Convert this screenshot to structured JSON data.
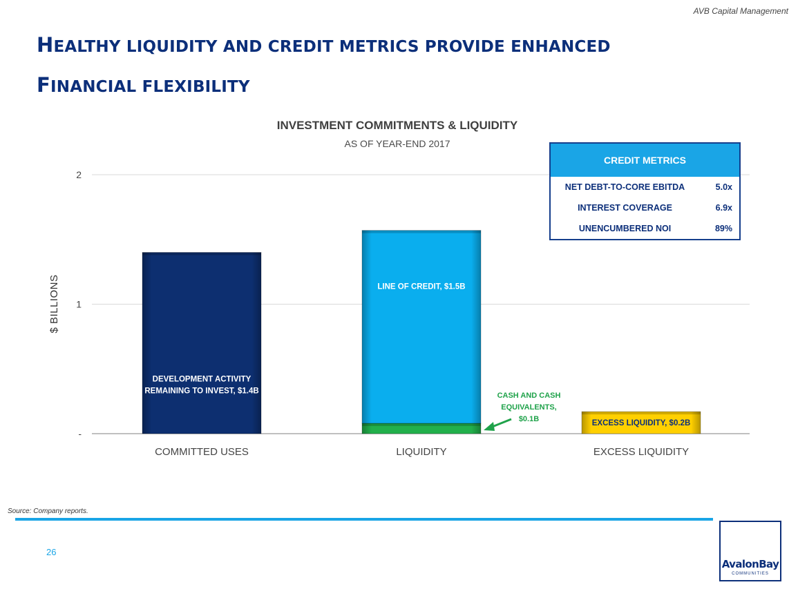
{
  "header": {
    "firm": "AVB Capital Management",
    "title_line1": "Healthy liquidity and credit metrics provide enhanced",
    "title_line2": "financial flexibility"
  },
  "chart_data": {
    "type": "bar",
    "stacked": true,
    "title": "INVESTMENT COMMITMENTS & LIQUIDITY",
    "subtitle": "AS OF YEAR-END 2017",
    "ylabel": "$ BILLIONS",
    "ylim": [
      0,
      2
    ],
    "yticks": [
      {
        "value": 0,
        "label": "-"
      },
      {
        "value": 1,
        "label": "1"
      },
      {
        "value": 2,
        "label": "2"
      }
    ],
    "grid": true,
    "legend": "none",
    "categories": [
      "COMMITTED USES",
      "LIQUIDITY",
      "EXCESS LIQUIDITY"
    ],
    "segments": [
      {
        "category": "COMMITTED USES",
        "base": 0,
        "value": 1.4,
        "label": "DEVELOPMENT ACTIVITY REMAINING TO INVEST, $1.4B",
        "label_lines": [
          "DEVELOPMENT ACTIVITY",
          "REMAINING TO INVEST, $1.4B"
        ],
        "label_color": "#ffffff",
        "label_position": "center",
        "color": "#0d2f70"
      },
      {
        "category": "LIQUIDITY",
        "base": 0,
        "value": 0.08,
        "label": "",
        "label_lines": [],
        "label_color": "#ffffff",
        "label_position": "center",
        "color": "#22b04b"
      },
      {
        "category": "LIQUIDITY",
        "base": 0.08,
        "value": 1.49,
        "label": "LINE OF CREDIT, $1.5B",
        "label_lines": [
          "LINE OF CREDIT, $1.5B"
        ],
        "label_color": "#ffffff",
        "label_position": "mid",
        "color": "#0aaeee"
      },
      {
        "category": "EXCESS LIQUIDITY",
        "base": 0,
        "value": 0.17,
        "label": "EXCESS LIQUIDITY, $0.2B",
        "label_lines": [
          "EXCESS LIQUIDITY, $0.2B"
        ],
        "label_color": "#0c2f7a",
        "label_position": "center",
        "color": "#ffd000"
      }
    ],
    "annotations": [
      {
        "text": "CASH AND CASH EQUIVALENTS, $0.1B",
        "lines": [
          "CASH AND CASH",
          "EQUIVALENTS,",
          "$0.1B"
        ],
        "color": "#1fa24a",
        "points_to": "LIQUIDITY cash segment"
      }
    ]
  },
  "credit_metrics": {
    "title": "CREDIT METRICS",
    "rows": [
      {
        "label": "NET DEBT-TO-CORE EBITDA",
        "value": "5.0x"
      },
      {
        "label": "INTEREST COVERAGE",
        "value": "6.9x"
      },
      {
        "label": "UNENCUMBERED NOI",
        "value": "89%"
      }
    ]
  },
  "footer": {
    "source": "Source:  Company reports.",
    "page": "26",
    "logo_text": "AvalonBay",
    "logo_sub": "COMMUNITIES"
  },
  "colors": {
    "title_blue": "#0c2f7a",
    "accent_blue": "#1aa5e6",
    "navy_bar": "#0d2f70",
    "light_blue_bar": "#0aaeee",
    "green_bar": "#22b04b",
    "yellow_bar": "#ffd000"
  }
}
